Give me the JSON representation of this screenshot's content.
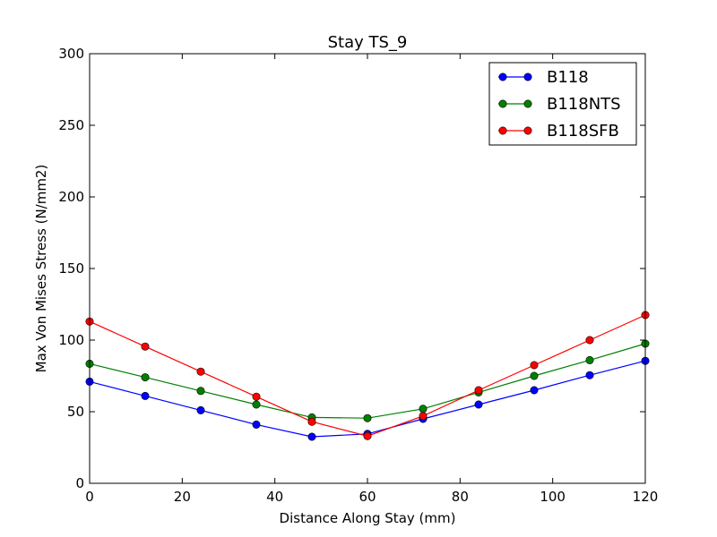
{
  "chart_data": {
    "type": "line",
    "title": "Stay TS_9",
    "xlabel": "Distance Along Stay (mm)",
    "ylabel": "Max Von Mises Stress (N/mm2)",
    "xlim": [
      0,
      120
    ],
    "ylim": [
      0,
      300
    ],
    "xticks": [
      0,
      20,
      40,
      60,
      80,
      100,
      120
    ],
    "yticks": [
      0,
      50,
      100,
      150,
      200,
      250,
      300
    ],
    "grid": false,
    "legend_position": "top-right",
    "x": [
      0,
      12,
      24,
      36,
      48,
      60,
      72,
      84,
      96,
      108,
      120
    ],
    "series": [
      {
        "name": "B118",
        "color": "#0000ff",
        "values": [
          71,
          61,
          51,
          41,
          32.5,
          34.5,
          45,
          55,
          65,
          75.5,
          85.5
        ]
      },
      {
        "name": "B118NTS",
        "color": "#008000",
        "values": [
          83.5,
          74,
          64.5,
          55,
          46,
          45.5,
          52,
          63.5,
          75,
          86,
          97.5
        ]
      },
      {
        "name": "B118SFB",
        "color": "#ff0000",
        "values": [
          113,
          95.5,
          78,
          60.5,
          43,
          33,
          47,
          65,
          82.5,
          100,
          117.5
        ]
      }
    ]
  }
}
